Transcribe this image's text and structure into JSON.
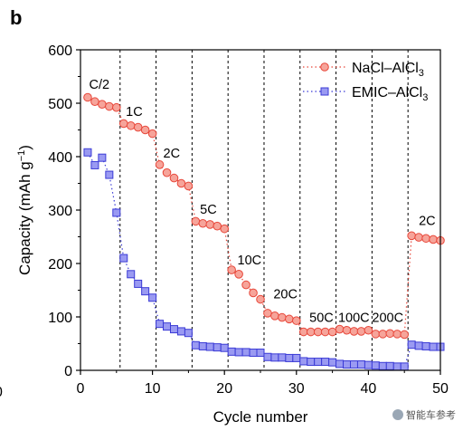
{
  "panel_label": "b",
  "watermark_text": "智能车参考",
  "stray_tick": "0",
  "chart_data": {
    "type": "scatter",
    "title": "",
    "xlabel": "Cycle number",
    "ylabel": "Capacity (mAh g",
    "ylabel_superscript": "−1",
    "ylabel_close": ")",
    "xlim": [
      0,
      50
    ],
    "ylim": [
      0,
      600
    ],
    "xticks": [
      0,
      10,
      20,
      30,
      40,
      50
    ],
    "yticks": [
      0,
      100,
      200,
      300,
      400,
      500,
      600
    ],
    "grid": false,
    "legend_position": "top-right",
    "rate_boundaries": [
      5.5,
      10.5,
      15.5,
      20.5,
      25.5,
      30.5,
      35.5,
      40.5,
      45.5
    ],
    "rate_labels": [
      {
        "text": "C/2",
        "x": 1.2,
        "y": 527
      },
      {
        "text": "1C",
        "x": 6.3,
        "y": 476
      },
      {
        "text": "2C",
        "x": 11.5,
        "y": 398
      },
      {
        "text": "5C",
        "x": 16.6,
        "y": 293
      },
      {
        "text": "10C",
        "x": 21.8,
        "y": 198
      },
      {
        "text": "20C",
        "x": 26.8,
        "y": 135
      },
      {
        "text": "50C",
        "x": 31.8,
        "y": 91
      },
      {
        "text": "100C",
        "x": 35.8,
        "y": 91
      },
      {
        "text": "200C",
        "x": 40.5,
        "y": 91
      },
      {
        "text": "2C",
        "x": 47.0,
        "y": 272
      }
    ],
    "series": [
      {
        "name": "NaCl–AlCl",
        "name_subscript": "3",
        "color": "#e8473a",
        "fill": "#f6a49a",
        "marker": "circle",
        "x": [
          1,
          2,
          3,
          4,
          5,
          6,
          7,
          8,
          9,
          10,
          11,
          12,
          13,
          14,
          15,
          16,
          17,
          18,
          19,
          20,
          21,
          22,
          23,
          24,
          25,
          26,
          27,
          28,
          29,
          30,
          31,
          32,
          33,
          34,
          35,
          36,
          37,
          38,
          39,
          40,
          41,
          42,
          43,
          44,
          45,
          46,
          47,
          48,
          49,
          50
        ],
        "y": [
          511,
          503,
          498,
          494,
          492,
          462,
          458,
          455,
          450,
          443,
          385,
          370,
          360,
          350,
          345,
          279,
          275,
          273,
          270,
          265,
          188,
          180,
          160,
          145,
          133,
          107,
          102,
          99,
          96,
          93,
          72,
          72,
          72,
          72,
          72,
          77,
          75,
          73,
          73,
          75,
          68,
          68,
          69,
          68,
          67,
          252,
          249,
          247,
          245,
          243
        ]
      },
      {
        "name": "EMIC–AlCl",
        "name_subscript": "3",
        "color": "#3b3bd6",
        "fill": "#9a9af2",
        "marker": "square",
        "x": [
          1,
          2,
          3,
          4,
          5,
          6,
          7,
          8,
          9,
          10,
          11,
          12,
          13,
          14,
          15,
          16,
          17,
          18,
          19,
          20,
          21,
          22,
          23,
          24,
          25,
          26,
          27,
          28,
          29,
          30,
          31,
          32,
          33,
          34,
          35,
          36,
          37,
          38,
          39,
          40,
          41,
          42,
          43,
          44,
          45,
          46,
          47,
          48,
          49,
          50
        ],
        "y": [
          408,
          384,
          398,
          366,
          295,
          210,
          180,
          162,
          148,
          136,
          87,
          82,
          77,
          73,
          70,
          47,
          45,
          44,
          43,
          42,
          35,
          34,
          34,
          33,
          33,
          25,
          24,
          24,
          23,
          23,
          17,
          16,
          16,
          16,
          15,
          12,
          11,
          11,
          11,
          10,
          9,
          8,
          8,
          7,
          7,
          48,
          46,
          45,
          44,
          44
        ]
      }
    ]
  }
}
